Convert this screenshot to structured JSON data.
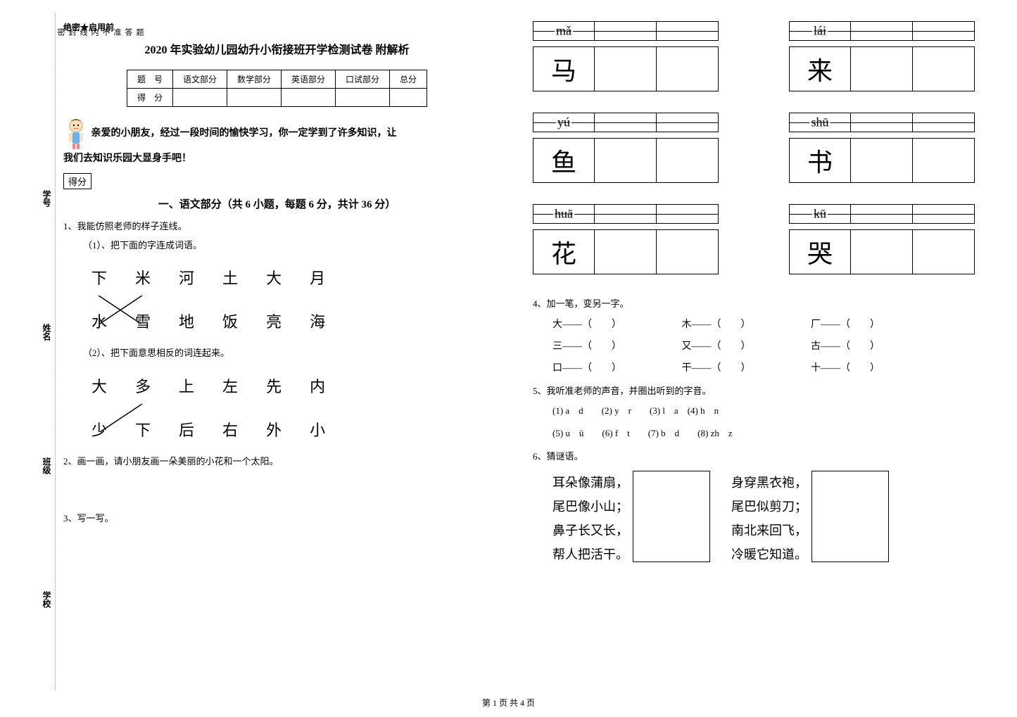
{
  "side": {
    "labels": [
      "学校",
      "班级",
      "姓名",
      "学号"
    ],
    "seal_chars": [
      "密",
      "封",
      "线",
      "内",
      "不",
      "准",
      "答",
      "题"
    ]
  },
  "header": {
    "tag": "绝密★启用前"
  },
  "title": "2020 年实验幼儿园幼升小衔接班开学检测试卷  附解析",
  "score_table": {
    "row1": [
      "题　号",
      "语文部分",
      "数学部分",
      "英语部分",
      "口试部分",
      "总分"
    ],
    "row2": [
      "得　分",
      "",
      "",
      "",
      "",
      ""
    ]
  },
  "intro": {
    "line1": "亲爱的小朋友，经过一段时间的愉快学习，你一定学到了许多知识，让",
    "line2": "我们去知识乐园大显身手吧！"
  },
  "score_box": "得分",
  "section1": {
    "title": "一、语文部分（共 6 小题，每题 6 分，共计 36 分）",
    "q1": "1、我能仿照老师的样子连线。",
    "q1_1": "（1）、把下面的字连成词语。",
    "row1a": [
      "下",
      "米",
      "河",
      "土",
      "大",
      "月"
    ],
    "row1b": [
      "水",
      "雪",
      "地",
      "饭",
      "亮",
      "海"
    ],
    "q1_2": "（2）、把下面意思相反的词连起来。",
    "row2a": [
      "大",
      "多",
      "上",
      "左",
      "先",
      "内"
    ],
    "row2b": [
      "少",
      "下",
      "后",
      "右",
      "外",
      "小"
    ],
    "q2": "2、画一画，请小朋友画一朵美丽的小花和一个太阳。",
    "q3": "3、写一写。"
  },
  "write": {
    "pairs": [
      {
        "pinyin": "mǎ",
        "char": "马"
      },
      {
        "pinyin": "lái",
        "char": "来"
      },
      {
        "pinyin": "yú",
        "char": "鱼"
      },
      {
        "pinyin": "shū",
        "char": "书"
      },
      {
        "pinyin": "huā",
        "char": "花"
      },
      {
        "pinyin": "kū",
        "char": "哭"
      }
    ]
  },
  "q4": {
    "label": "4、加一笔，变另一字。",
    "items": [
      [
        "大——（　　）",
        "木——（　　）",
        "厂——（　　）"
      ],
      [
        "三——（　　）",
        "又——（　　）",
        "古——（　　）"
      ],
      [
        "口——（　　）",
        "干——（　　）",
        "十——（　　）"
      ]
    ]
  },
  "q5": {
    "label": "5、我听准老师的声音，并圈出听到的字音。",
    "row1": "(1) a　d　　(2) y　r　　(3) l　a　(4) h　n",
    "row2": "(5) u　ü　　(6) f　t　　(7) b　d　　(8) zh　z"
  },
  "q6": {
    "label": "6、猜谜语。",
    "r1": [
      "耳朵像蒲扇，",
      "尾巴像小山；",
      "鼻子长又长，",
      "帮人把活干。"
    ],
    "r2": [
      "身穿黑衣袍，",
      "尾巴似剪刀；",
      "南北来回飞，",
      "冷暖它知道。"
    ]
  },
  "footer": "第 1 页  共 4 页",
  "colors": {
    "text": "#000000",
    "bg": "#ffffff",
    "dotted": "#999999"
  }
}
